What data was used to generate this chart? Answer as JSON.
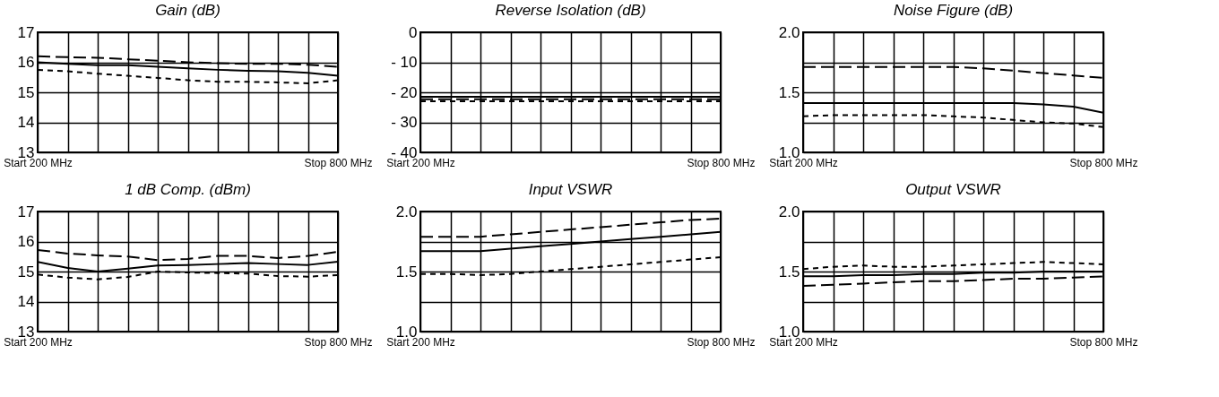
{
  "chart_data": [
    {
      "type": "line",
      "title": "Gain (dB)",
      "categories": [
        "Start 200 MHz",
        null,
        null,
        null,
        null,
        null,
        null,
        null,
        null,
        null,
        "Stop 800 MHz"
      ],
      "ylim": [
        13,
        17
      ],
      "yticks": [
        13,
        14,
        15,
        16,
        17
      ],
      "grid": true,
      "series": [
        {
          "color": "#000000",
          "line_style": "solid",
          "values": [
            16.0,
            15.95,
            15.9,
            15.9,
            15.85,
            15.8,
            15.75,
            15.72,
            15.7,
            15.65,
            15.55
          ]
        },
        {
          "color": "#000000",
          "line_style": "dashed",
          "values": [
            16.2,
            16.17,
            16.15,
            16.1,
            16.05,
            16.0,
            15.97,
            15.95,
            15.95,
            15.92,
            15.85
          ]
        },
        {
          "color": "#000000",
          "line_style": "dotted",
          "values": [
            15.75,
            15.7,
            15.62,
            15.55,
            15.48,
            15.4,
            15.35,
            15.35,
            15.33,
            15.3,
            15.4
          ]
        }
      ]
    },
    {
      "type": "line",
      "title": "Reverse Isolation (dB)",
      "categories": [
        "Start 200 MHz",
        null,
        null,
        null,
        null,
        null,
        null,
        null,
        null,
        null,
        "Stop 800 MHz"
      ],
      "ylim": [
        -40,
        0
      ],
      "yticks": [
        {
          "value": -40,
          "label": "- 40"
        },
        {
          "value": -30,
          "label": "- 30"
        },
        {
          "value": -20,
          "label": "- 20"
        },
        {
          "value": -10,
          "label": "- 10"
        },
        0
      ],
      "grid": true,
      "series": [
        {
          "color": "#000000",
          "line_style": "solid",
          "values": [
            -21.5,
            -21.5,
            -21.5,
            -21.5,
            -21.5,
            -21.5,
            -21.5,
            -21.5,
            -21.5,
            -21.5,
            -21.5
          ]
        },
        {
          "color": "#000000",
          "line_style": "dashed",
          "values": [
            -22.3,
            -22.3,
            -22.3,
            -22.3,
            -22.3,
            -22.3,
            -22.3,
            -22.3,
            -22.3,
            -22.3,
            -22.3
          ]
        },
        {
          "color": "#000000",
          "line_style": "dotted",
          "values": [
            -23,
            -23,
            -23,
            -23,
            -23,
            -23,
            -23,
            -23,
            -23,
            -23,
            -23
          ]
        }
      ]
    },
    {
      "type": "line",
      "title": "Noise Figure (dB)",
      "categories": [
        "Start 200 MHz",
        null,
        null,
        null,
        null,
        null,
        null,
        null,
        null,
        null,
        "Stop 800 MHz"
      ],
      "ylim": [
        1,
        2
      ],
      "yticks": [
        {
          "value": 1,
          "label": "1.0"
        },
        {
          "value": 1.25,
          "label": null
        },
        1.5,
        {
          "value": 1.75,
          "label": null
        },
        {
          "value": 2,
          "label": "2.0"
        }
      ],
      "grid": true,
      "series": [
        {
          "color": "#000000",
          "line_style": "solid",
          "values": [
            1.41,
            1.41,
            1.41,
            1.41,
            1.41,
            1.41,
            1.41,
            1.41,
            1.4,
            1.38,
            1.33
          ]
        },
        {
          "color": "#000000",
          "line_style": "dashed",
          "values": [
            1.71,
            1.71,
            1.71,
            1.71,
            1.71,
            1.71,
            1.7,
            1.68,
            1.66,
            1.64,
            1.62
          ]
        },
        {
          "color": "#000000",
          "line_style": "dotted",
          "values": [
            1.3,
            1.31,
            1.31,
            1.31,
            1.31,
            1.3,
            1.29,
            1.27,
            1.25,
            1.24,
            1.21
          ]
        }
      ]
    },
    {
      "type": "line",
      "title": "1 dB Comp. (dBm)",
      "categories": [
        "Start 200 MHz",
        null,
        null,
        null,
        null,
        null,
        null,
        null,
        null,
        null,
        "Stop 800 MHz"
      ],
      "ylim": [
        13,
        17
      ],
      "yticks": [
        13,
        14,
        15,
        16,
        17
      ],
      "grid": true,
      "series": [
        {
          "color": "#000000",
          "line_style": "solid",
          "values": [
            15.32,
            15.12,
            15.0,
            15.1,
            15.2,
            15.22,
            15.25,
            15.28,
            15.25,
            15.22,
            15.33
          ]
        },
        {
          "color": "#000000",
          "line_style": "dashed",
          "values": [
            15.72,
            15.6,
            15.54,
            15.5,
            15.38,
            15.42,
            15.52,
            15.52,
            15.45,
            15.52,
            15.66
          ]
        },
        {
          "color": "#000000",
          "line_style": "dotted",
          "values": [
            14.9,
            14.8,
            14.74,
            14.82,
            15.0,
            14.97,
            14.95,
            14.93,
            14.85,
            14.83,
            14.88
          ]
        }
      ]
    },
    {
      "type": "line",
      "title": "Input VSWR",
      "categories": [
        "Start 200 MHz",
        null,
        null,
        null,
        null,
        null,
        null,
        null,
        null,
        null,
        "Stop 800 MHz"
      ],
      "ylim": [
        1,
        2
      ],
      "yticks": [
        {
          "value": 1,
          "label": "1.0"
        },
        {
          "value": 1.25,
          "label": null
        },
        1.5,
        {
          "value": 1.75,
          "label": null
        },
        {
          "value": 2,
          "label": "2.0"
        }
      ],
      "grid": true,
      "series": [
        {
          "color": "#000000",
          "line_style": "solid",
          "values": [
            1.67,
            1.67,
            1.67,
            1.69,
            1.71,
            1.73,
            1.75,
            1.77,
            1.79,
            1.81,
            1.83
          ]
        },
        {
          "color": "#000000",
          "line_style": "dashed",
          "values": [
            1.79,
            1.79,
            1.79,
            1.81,
            1.83,
            1.85,
            1.87,
            1.89,
            1.91,
            1.93,
            1.94
          ]
        },
        {
          "color": "#000000",
          "line_style": "dotted",
          "values": [
            1.48,
            1.48,
            1.47,
            1.48,
            1.5,
            1.52,
            1.54,
            1.56,
            1.58,
            1.6,
            1.62
          ]
        }
      ]
    },
    {
      "type": "line",
      "title": "Output VSWR",
      "categories": [
        "Start 200 MHz",
        null,
        null,
        null,
        null,
        null,
        null,
        null,
        null,
        null,
        "Stop 800 MHz"
      ],
      "ylim": [
        1,
        2
      ],
      "yticks": [
        {
          "value": 1,
          "label": "1.0"
        },
        {
          "value": 1.25,
          "label": null
        },
        1.5,
        {
          "value": 1.75,
          "label": null
        },
        {
          "value": 2,
          "label": "2.0"
        }
      ],
      "grid": true,
      "series": [
        {
          "color": "#000000",
          "line_style": "solid",
          "values": [
            1.46,
            1.46,
            1.47,
            1.47,
            1.48,
            1.48,
            1.49,
            1.49,
            1.5,
            1.5,
            1.5
          ]
        },
        {
          "color": "#000000",
          "line_style": "dashed",
          "values": [
            1.38,
            1.39,
            1.4,
            1.41,
            1.42,
            1.42,
            1.43,
            1.44,
            1.44,
            1.45,
            1.46
          ]
        },
        {
          "color": "#000000",
          "line_style": "dotted",
          "values": [
            1.52,
            1.54,
            1.55,
            1.54,
            1.54,
            1.55,
            1.56,
            1.57,
            1.58,
            1.57,
            1.56
          ]
        }
      ]
    }
  ]
}
